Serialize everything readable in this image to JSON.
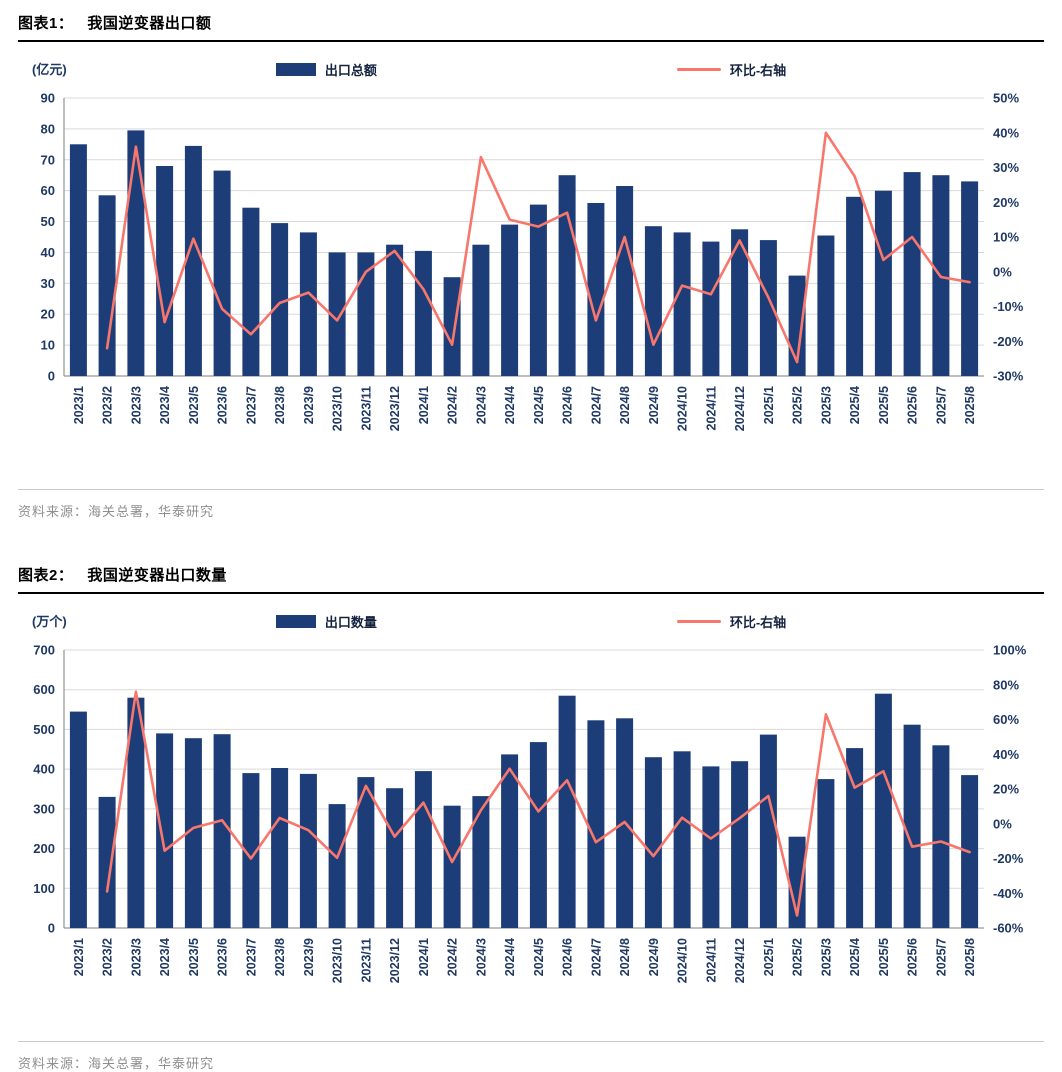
{
  "colors": {
    "bar": "#1d3d78",
    "line": "#f8776c",
    "label": "#1f3864",
    "grid": "#d9d9d9",
    "axis": "#7f7f7f"
  },
  "charts": [
    {
      "heading_prefix": "图表1：",
      "heading_title": "我国逆变器出口额",
      "unit": "(亿元)",
      "legend_bar": "出口总额",
      "legend_line": "环比-右轴",
      "source": "资料来源：海关总署，华泰研究"
    },
    {
      "heading_prefix": "图表2：",
      "heading_title": "我国逆变器出口数量",
      "unit": "(万个)",
      "legend_bar": "出口数量",
      "legend_line": "环比-右轴",
      "source": "资料来源：海关总署，华泰研究"
    }
  ],
  "chart_data": [
    {
      "type": "bar",
      "title": "我国逆变器出口额",
      "ylabel": "(亿元)",
      "categories": [
        "2023/1",
        "2023/2",
        "2023/3",
        "2023/4",
        "2023/5",
        "2023/6",
        "2023/7",
        "2023/8",
        "2023/9",
        "2023/10",
        "2023/11",
        "2023/12",
        "2024/1",
        "2024/2",
        "2024/3",
        "2024/4",
        "2024/5",
        "2024/6",
        "2024/7",
        "2024/8",
        "2024/9",
        "2024/10",
        "2024/11",
        "2024/12",
        "2025/1",
        "2025/2",
        "2025/3",
        "2025/4",
        "2025/5",
        "2025/6",
        "2025/7",
        "2025/8"
      ],
      "bar_series": {
        "name": "出口总额",
        "values": [
          75,
          58.5,
          79.5,
          68,
          74.5,
          66.5,
          54.5,
          49.5,
          46.5,
          40,
          40,
          42.5,
          40.5,
          32,
          42.5,
          49,
          55.5,
          65,
          56,
          61.5,
          48.5,
          46.5,
          43.5,
          47.5,
          44,
          32.5,
          45.5,
          58,
          60,
          66,
          65,
          63
        ]
      },
      "line_series": {
        "name": "环比-右轴",
        "values": [
          null,
          -22,
          36,
          -14.5,
          9.5,
          -10.7,
          -18,
          -9,
          -6,
          -14,
          0,
          6,
          -5,
          -21,
          33,
          15,
          13,
          17,
          -14,
          10,
          -21,
          -4,
          -6.5,
          9,
          -7.4,
          -26,
          40,
          27.5,
          3.4,
          10,
          -1.5,
          -3
        ]
      },
      "left_axis": {
        "min": 0,
        "max": 90,
        "step": 10
      },
      "right_axis": {
        "min": -30,
        "max": 50,
        "step": 10,
        "suffix": "%"
      }
    },
    {
      "type": "bar",
      "title": "我国逆变器出口数量",
      "ylabel": "(万个)",
      "categories": [
        "2023/1",
        "2023/2",
        "2023/3",
        "2023/4",
        "2023/5",
        "2023/6",
        "2023/7",
        "2023/8",
        "2023/9",
        "2023/10",
        "2023/11",
        "2023/12",
        "2024/1",
        "2024/2",
        "2024/3",
        "2024/4",
        "2024/5",
        "2024/6",
        "2024/7",
        "2024/8",
        "2024/9",
        "2024/10",
        "2024/11",
        "2024/12",
        "2025/1",
        "2025/2",
        "2025/3",
        "2025/4",
        "2025/5",
        "2025/6",
        "2025/7",
        "2025/8"
      ],
      "bar_series": {
        "name": "出口数量",
        "values": [
          545,
          330,
          580,
          490,
          478,
          488,
          390,
          403,
          388,
          312,
          380,
          352,
          395,
          308,
          332,
          437,
          468,
          585,
          523,
          528,
          430,
          445,
          407,
          420,
          487,
          230,
          375,
          453,
          590,
          512,
          460,
          385
        ]
      },
      "line_series": {
        "name": "环比-右轴",
        "values": [
          null,
          -39,
          76,
          -15.5,
          -2.4,
          2,
          -20,
          3.3,
          -3.7,
          -19.6,
          21.8,
          -7.4,
          12.2,
          -22,
          7.8,
          31.6,
          7.1,
          25,
          -10.6,
          1,
          -18.6,
          3.5,
          -8.5,
          3.2,
          16,
          -52.8,
          63,
          20.8,
          30.2,
          -13.2,
          -10.2,
          -16.3
        ]
      },
      "left_axis": {
        "min": 0,
        "max": 700,
        "step": 100
      },
      "right_axis": {
        "min": -60,
        "max": 100,
        "step": 20,
        "suffix": "%"
      }
    }
  ]
}
